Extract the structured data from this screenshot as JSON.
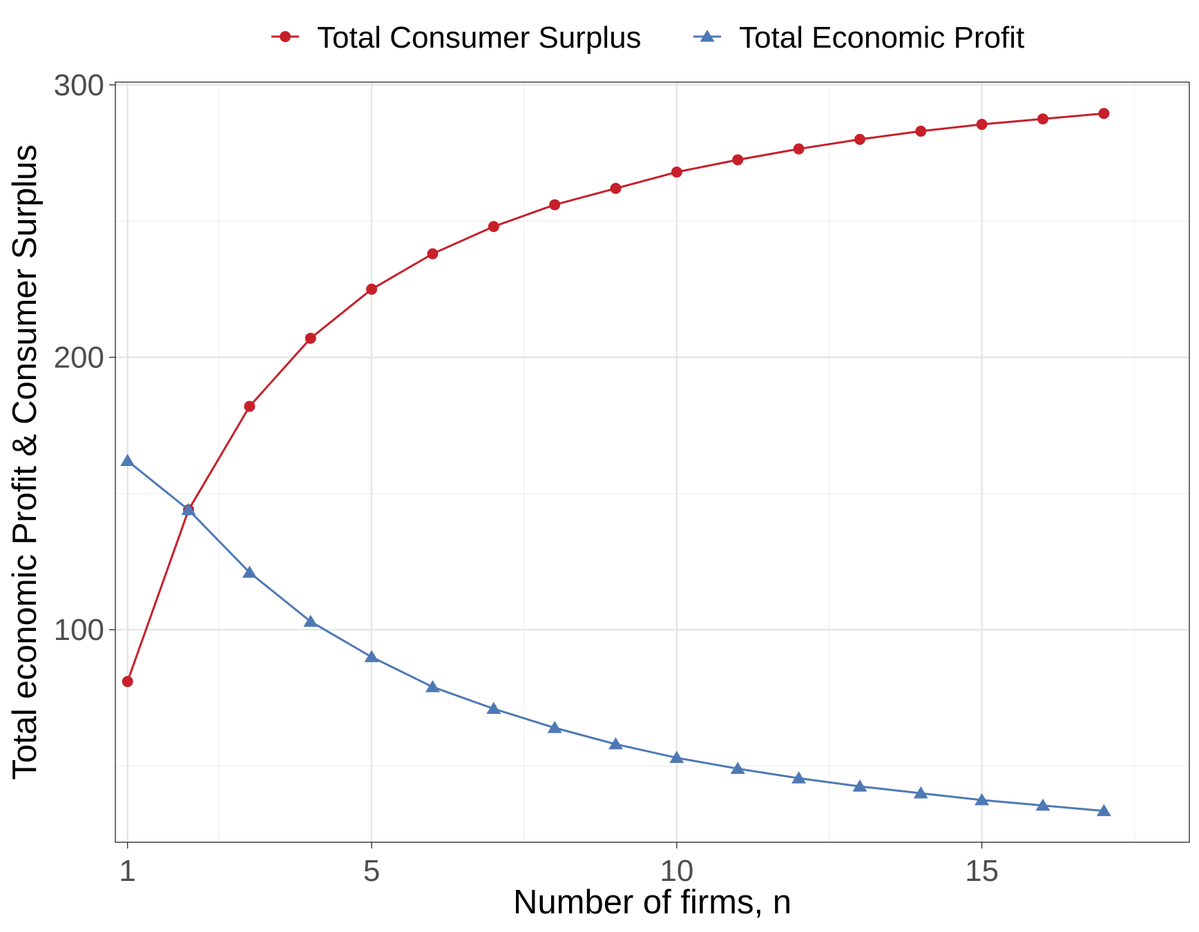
{
  "chart_data": {
    "type": "line",
    "xlabel": "Number of firms, n",
    "ylabel": "Total economic Profit & Consumer Surplus",
    "xlim": [
      0.8,
      18.4
    ],
    "ylim": [
      22,
      301
    ],
    "x_ticks": [
      1,
      5,
      10,
      15
    ],
    "x_minor_ticks": [
      2.5,
      7.5,
      12.5,
      17.5
    ],
    "y_ticks": [
      100,
      200,
      300
    ],
    "y_minor_ticks": [
      50,
      150,
      250
    ],
    "x_tick_labels": [
      "1",
      "5",
      "10",
      "15"
    ],
    "y_tick_labels": [
      "100",
      "200",
      "300"
    ],
    "grid": true,
    "legend_position": "top",
    "x": [
      1,
      2,
      3,
      4,
      5,
      6,
      7,
      8,
      9,
      10,
      11,
      12,
      13,
      14,
      15,
      16,
      17
    ],
    "series": [
      {
        "name": "Total Consumer Surplus",
        "color": "#c7202a",
        "marker": "circle",
        "values": [
          81,
          144,
          182,
          207,
          225,
          238,
          248,
          256,
          262,
          268,
          272.5,
          276.5,
          280,
          283,
          285.5,
          287.5,
          289.5
        ]
      },
      {
        "name": "Total Economic Profit",
        "color": "#4e79b5",
        "marker": "triangle",
        "values": [
          162,
          144,
          121,
          103,
          90,
          79,
          71,
          64,
          58,
          53,
          49,
          45.5,
          42.5,
          40,
          37.5,
          35.5,
          33.5
        ]
      }
    ]
  }
}
